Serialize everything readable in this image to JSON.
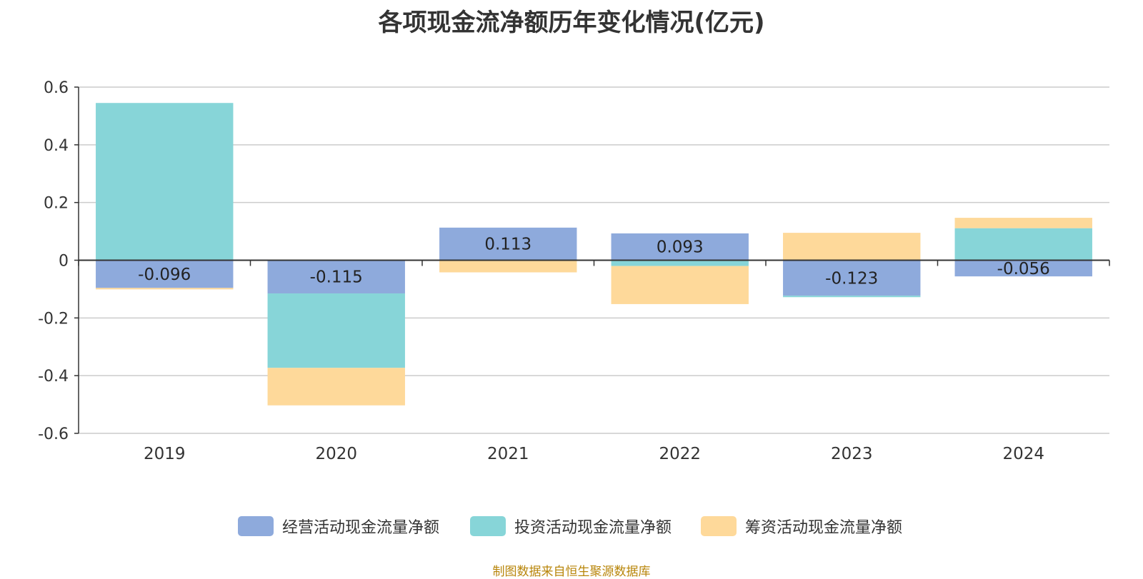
{
  "title": "各项现金流净额历年变化情况(亿元)",
  "source": "制图数据来自恒生聚源数据库",
  "chart_data": {
    "type": "bar",
    "stacked": true,
    "categories": [
      "2019",
      "2020",
      "2021",
      "2022",
      "2023",
      "2024"
    ],
    "ylim": [
      -0.6,
      0.6
    ],
    "yticks": [
      "0.6",
      "0.4",
      "0.2",
      "0",
      "-0.2",
      "-0.4",
      "-0.6"
    ],
    "grid": true,
    "legend_position": "bottom",
    "series": [
      {
        "name": "经营活动现金流量净额",
        "color": "#8eaadc",
        "values": [
          -0.096,
          -0.115,
          0.113,
          0.093,
          -0.123,
          -0.056
        ],
        "labels": [
          "-0.096",
          "-0.115",
          "0.113",
          "0.093",
          "-0.123",
          "-0.056"
        ]
      },
      {
        "name": "投资活动现金流量净额",
        "color": "#87d5d8",
        "values": [
          0.545,
          -0.258,
          0.0,
          -0.02,
          -0.005,
          0.111
        ]
      },
      {
        "name": "筹资活动现金流量净额",
        "color": "#fed99a",
        "values": [
          -0.005,
          -0.13,
          -0.042,
          -0.132,
          0.095,
          0.036
        ]
      }
    ]
  }
}
